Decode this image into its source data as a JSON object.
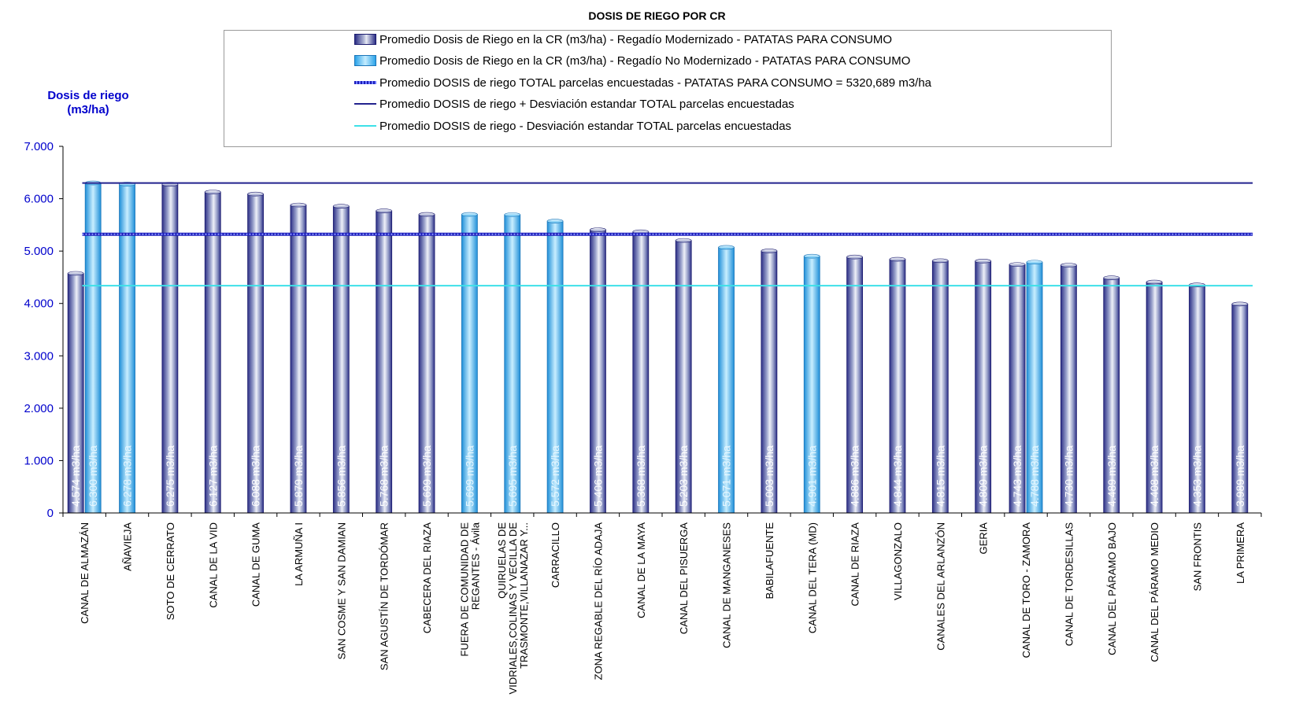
{
  "chart_data": {
    "type": "bar",
    "title": "DOSIS DE RIEGO POR CR",
    "ylabel": "Dosis de riego (m3/ha)",
    "ylabel_lines": [
      "Dosis de riego",
      "(m3/ha)"
    ],
    "ylim": [
      0,
      7000
    ],
    "yticks": [
      0,
      1000,
      2000,
      3000,
      4000,
      5000,
      6000,
      7000
    ],
    "ytick_labels": [
      "0",
      "1.000",
      "2.000",
      "3.000",
      "4.000",
      "5.000",
      "6.000",
      "7.000"
    ],
    "legend": {
      "placement": "top",
      "entries": [
        "Promedio Dosis de Riego en la CR (m3/ha) - Regadío Modernizado - PATATAS PARA CONSUMO",
        "Promedio Dosis de Riego en la CR (m3/ha) - Regadío No Modernizado - PATATAS PARA CONSUMO",
        "Promedio DOSIS de riego TOTAL parcelas encuestadas - PATATAS PARA CONSUMO = 5320,689 m3/ha",
        "Promedio DOSIS de riego + Desviación estandar TOTAL parcelas encuestadas",
        "Promedio DOSIS de riego - Desviación estandar TOTAL parcelas encuestadas"
      ]
    },
    "series": [
      {
        "name": "Promedio Dosis de Riego en la CR (m3/ha) - Regadío Modernizado - PATATAS PARA CONSUMO",
        "color": "#2c2f86"
      },
      {
        "name": "Promedio Dosis de Riego en la CR (m3/ha) - Regadío No Modernizado - PATATAS PARA CONSUMO",
        "color": "#2aa2e8"
      }
    ],
    "reference_lines": [
      {
        "name": "Promedio DOSIS de riego TOTAL parcelas encuestadas - PATATAS PARA CONSUMO = 5320,689 m3/ha",
        "value": 5320.689,
        "color": "#1a1ab8",
        "style": "dotted-thick"
      },
      {
        "name": "Promedio DOSIS de riego + Desviación estandar TOTAL parcelas encuestadas",
        "value": 6300,
        "color": "#23238e",
        "style": "solid"
      },
      {
        "name": "Promedio DOSIS de riego - Desviación estandar TOTAL parcelas encuestadas",
        "value": 4340,
        "color": "#3de0e8",
        "style": "solid"
      }
    ],
    "categories": [
      {
        "lines": [
          "CANAL DE ALMAZÁN"
        ],
        "modernizado": 4574,
        "mod_label": "4.574 m3/ha",
        "no_modernizado": 6300,
        "nomod_label": "6.300 m3/ha"
      },
      {
        "lines": [
          "AÑAVIEJA"
        ],
        "modernizado": null,
        "mod_label": null,
        "no_modernizado": 6278,
        "nomod_label": "6.278 m3/ha"
      },
      {
        "lines": [
          "SOTO DE CERRATO"
        ],
        "modernizado": 6275,
        "mod_label": "6.275 m3/ha",
        "no_modernizado": null,
        "nomod_label": null
      },
      {
        "lines": [
          "CANAL DE LA VID"
        ],
        "modernizado": 6127,
        "mod_label": "6.127 m3/ha",
        "no_modernizado": null,
        "nomod_label": null
      },
      {
        "lines": [
          "CANAL DE GUMA"
        ],
        "modernizado": 6088,
        "mod_label": "6.088 m3/ha",
        "no_modernizado": null,
        "nomod_label": null
      },
      {
        "lines": [
          "LA ARMUÑA I"
        ],
        "modernizado": 5879,
        "mod_label": "5.879 m3/ha",
        "no_modernizado": null,
        "nomod_label": null
      },
      {
        "lines": [
          "SAN COSME Y SAN DAMIAN"
        ],
        "modernizado": 5856,
        "mod_label": "5.856 m3/ha",
        "no_modernizado": null,
        "nomod_label": null
      },
      {
        "lines": [
          "SAN AGUSTÍN DE TORDÓMAR"
        ],
        "modernizado": 5768,
        "mod_label": "5.768 m3/ha",
        "no_modernizado": null,
        "nomod_label": null
      },
      {
        "lines": [
          "CABECERA DEL RIAZA"
        ],
        "modernizado": 5699,
        "mod_label": "5.699 m3/ha",
        "no_modernizado": null,
        "nomod_label": null
      },
      {
        "lines": [
          "FUERA DE COMUNIDAD DE",
          "REGANTES - Ávila"
        ],
        "modernizado": null,
        "mod_label": null,
        "no_modernizado": 5699,
        "nomod_label": "5.699 m3/ha"
      },
      {
        "lines": [
          "QUIRUELAS DE",
          "VIDRIALES,COLINAS Y VECILLA DE",
          "TRASMONTE,VILLANAZAR Y..."
        ],
        "modernizado": null,
        "mod_label": null,
        "no_modernizado": 5695,
        "nomod_label": "5.695 m3/ha"
      },
      {
        "lines": [
          "CARRACILLO"
        ],
        "modernizado": null,
        "mod_label": null,
        "no_modernizado": 5572,
        "nomod_label": "5.572 m3/ha"
      },
      {
        "lines": [
          "ZONA REGABLE DEL RÍO ADAJA"
        ],
        "modernizado": 5406,
        "mod_label": "5.406 m3/ha",
        "no_modernizado": null,
        "nomod_label": null
      },
      {
        "lines": [
          "CANAL DE LA MAYA"
        ],
        "modernizado": 5368,
        "mod_label": "5.368 m3/ha",
        "no_modernizado": null,
        "nomod_label": null
      },
      {
        "lines": [
          "CANAL DEL PISUERGA"
        ],
        "modernizado": 5203,
        "mod_label": "5.203 m3/ha",
        "no_modernizado": null,
        "nomod_label": null
      },
      {
        "lines": [
          "CANAL DE MANGANESES"
        ],
        "modernizado": null,
        "mod_label": null,
        "no_modernizado": 5071,
        "nomod_label": "5.071 m3/ha"
      },
      {
        "lines": [
          "BABILAFUENTE"
        ],
        "modernizado": 5003,
        "mod_label": "5.003 m3/ha",
        "no_modernizado": null,
        "nomod_label": null
      },
      {
        "lines": [
          "CANAL DEL TERA (MD)"
        ],
        "modernizado": null,
        "mod_label": null,
        "no_modernizado": 4901,
        "nomod_label": "4.901 m3/ha"
      },
      {
        "lines": [
          "CANAL DE RIAZA"
        ],
        "modernizado": 4886,
        "mod_label": "4.886 m3/ha",
        "no_modernizado": null,
        "nomod_label": null
      },
      {
        "lines": [
          "VILLAGONZALO"
        ],
        "modernizado": 4844,
        "mod_label": "4.844 m3/ha",
        "no_modernizado": null,
        "nomod_label": null
      },
      {
        "lines": [
          "CANALES DEL ARLANZÓN"
        ],
        "modernizado": 4815,
        "mod_label": "4.815 m3/ha",
        "no_modernizado": null,
        "nomod_label": null
      },
      {
        "lines": [
          "GERIA"
        ],
        "modernizado": 4809,
        "mod_label": "4.809 m3/ha",
        "no_modernizado": null,
        "nomod_label": null
      },
      {
        "lines": [
          "CANAL DE TORO - ZAMORA"
        ],
        "modernizado": 4743,
        "mod_label": "4.743 m3/ha",
        "no_modernizado": 4788,
        "nomod_label": "4.788 m3/ha"
      },
      {
        "lines": [
          "CANAL DE TORDESILLAS"
        ],
        "modernizado": 4730,
        "mod_label": "4.730 m3/ha",
        "no_modernizado": null,
        "nomod_label": null
      },
      {
        "lines": [
          "CANAL DEL PÁRAMO BAJO"
        ],
        "modernizado": 4489,
        "mod_label": "4.489 m3/ha",
        "no_modernizado": null,
        "nomod_label": null
      },
      {
        "lines": [
          "CANAL DEL PÁRAMO MEDIO"
        ],
        "modernizado": 4408,
        "mod_label": "4.408 m3/ha",
        "no_modernizado": null,
        "nomod_label": null
      },
      {
        "lines": [
          "SAN FRONTIS"
        ],
        "modernizado": 4353,
        "mod_label": "4.353 m3/ha",
        "no_modernizado": null,
        "nomod_label": null
      },
      {
        "lines": [
          "LA PRIMERA"
        ],
        "modernizado": 3989,
        "mod_label": "3.989 m3/ha",
        "no_modernizado": null,
        "nomod_label": null
      }
    ]
  }
}
